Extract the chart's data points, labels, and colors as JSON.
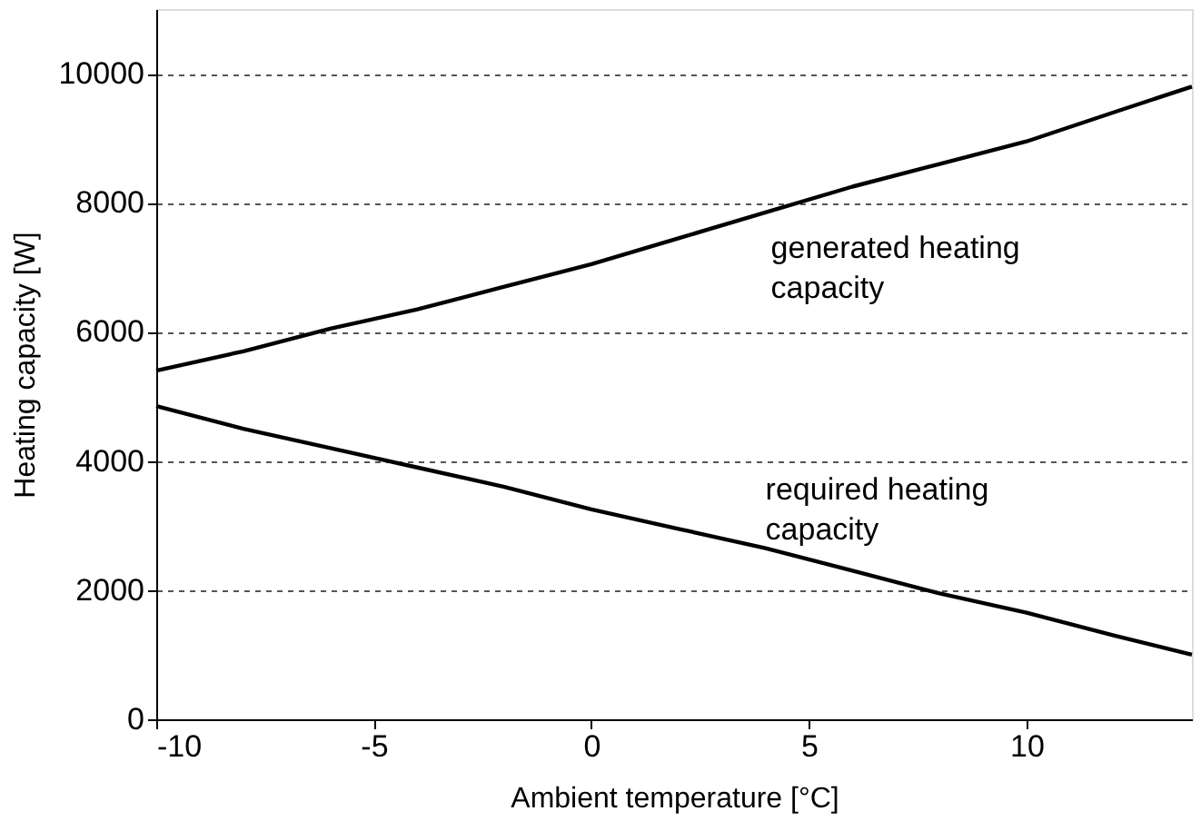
{
  "chart_data": {
    "type": "line",
    "xlabel": "Ambient temperature  [°C]",
    "ylabel": "Heating capacity  [W]",
    "xlim": [
      -10,
      13.8
    ],
    "xticks": [
      -10,
      -5,
      0,
      5,
      10
    ],
    "ylim": [
      0,
      11000
    ],
    "yticks": [
      0,
      2000,
      4000,
      6000,
      8000,
      10000
    ],
    "grid": "y",
    "legend": false,
    "line_style": "solid",
    "marker": "none",
    "series": [
      {
        "name": "generated heating capacity",
        "color": "#000000",
        "x": [
          -10,
          -8,
          -6,
          -4,
          -2,
          0,
          2,
          4,
          6,
          8,
          10,
          12,
          13.8
        ],
        "values": [
          5400,
          5700,
          6050,
          6350,
          6700,
          7050,
          7450,
          7850,
          8250,
          8600,
          8950,
          9400,
          9800
        ]
      },
      {
        "name": "required heating capacity",
        "color": "#000000",
        "x": [
          -10,
          -8,
          -6,
          -4,
          -2,
          0,
          2,
          4,
          6,
          8,
          10,
          12,
          13.8
        ],
        "values": [
          4850,
          4500,
          4200,
          3900,
          3600,
          3250,
          2950,
          2650,
          2300,
          1950,
          1650,
          1300,
          1000
        ]
      }
    ]
  }
}
